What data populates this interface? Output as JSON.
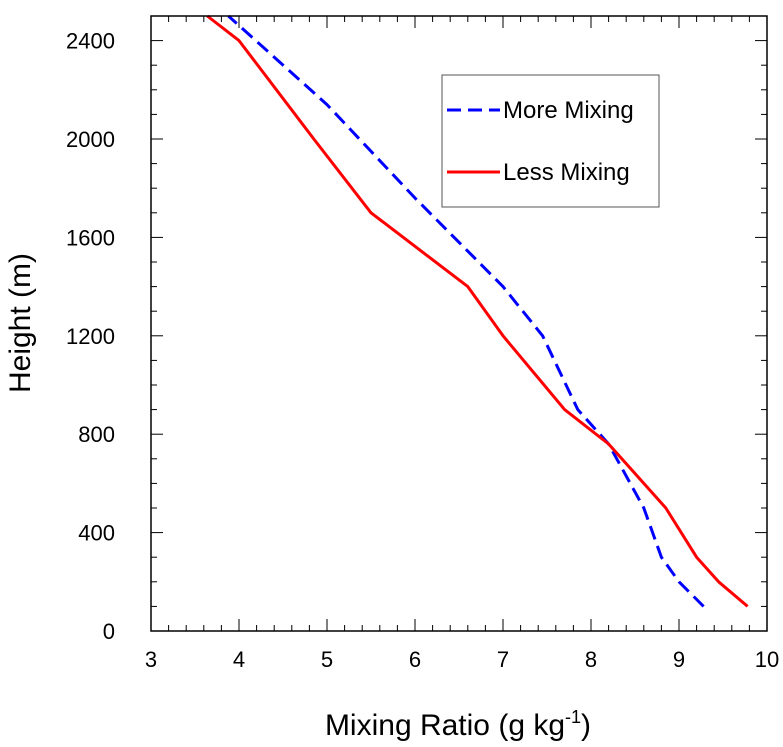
{
  "chart_data": {
    "type": "line",
    "xlabel": "Mixing Ratio (g kg",
    "xlabel_sup": "-1",
    "xlabel_close": ")",
    "ylabel": "Height (m)",
    "xlim": [
      3,
      10
    ],
    "ylim": [
      0,
      2500
    ],
    "xticks": [
      3,
      4,
      5,
      6,
      7,
      8,
      9,
      10
    ],
    "yticks": [
      0,
      400,
      800,
      1200,
      1600,
      2000,
      2400
    ],
    "legend_position": "top-right",
    "grid": false,
    "series": [
      {
        "name": "More Mixing",
        "color": "#0000ff",
        "dash": "dashed",
        "points": [
          [
            9.28,
            100
          ],
          [
            9.0,
            200
          ],
          [
            8.8,
            300
          ],
          [
            8.6,
            500
          ],
          [
            8.2,
            760
          ],
          [
            7.85,
            900
          ],
          [
            7.45,
            1200
          ],
          [
            7.0,
            1400
          ],
          [
            6.0,
            1760
          ],
          [
            5.0,
            2140
          ],
          [
            3.88,
            2500
          ]
        ]
      },
      {
        "name": "Less Mixing",
        "color": "#ff0000",
        "dash": "solid",
        "points": [
          [
            9.78,
            100
          ],
          [
            9.45,
            200
          ],
          [
            9.2,
            300
          ],
          [
            8.85,
            500
          ],
          [
            8.6,
            600
          ],
          [
            8.2,
            760
          ],
          [
            7.7,
            900
          ],
          [
            7.0,
            1200
          ],
          [
            6.6,
            1400
          ],
          [
            5.5,
            1700
          ],
          [
            4.85,
            2000
          ],
          [
            4.0,
            2400
          ],
          [
            3.64,
            2500
          ]
        ]
      }
    ]
  }
}
